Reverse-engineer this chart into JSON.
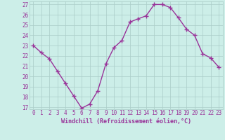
{
  "hours": [
    0,
    1,
    2,
    3,
    4,
    5,
    6,
    7,
    8,
    9,
    10,
    11,
    12,
    13,
    14,
    15,
    16,
    17,
    18,
    19,
    20,
    21,
    22,
    23
  ],
  "values": [
    23.0,
    22.3,
    21.7,
    20.5,
    19.3,
    18.1,
    16.9,
    17.3,
    18.6,
    21.2,
    22.8,
    23.5,
    25.3,
    25.6,
    25.9,
    27.0,
    27.0,
    26.7,
    25.7,
    24.6,
    24.0,
    22.2,
    21.8,
    20.9
  ],
  "line_color": "#993399",
  "marker": "+",
  "marker_size": 4,
  "marker_linewidth": 1.0,
  "bg_color": "#cceee8",
  "grid_color": "#aaccc8",
  "xlabel": "Windchill (Refroidissement éolien,°C)",
  "ylim_min": 16.8,
  "ylim_max": 27.3,
  "xlim_min": -0.5,
  "xlim_max": 23.5,
  "yticks": [
    17,
    18,
    19,
    20,
    21,
    22,
    23,
    24,
    25,
    26,
    27
  ],
  "xticks": [
    0,
    1,
    2,
    3,
    4,
    5,
    6,
    7,
    8,
    9,
    10,
    11,
    12,
    13,
    14,
    15,
    16,
    17,
    18,
    19,
    20,
    21,
    22,
    23
  ],
  "axis_label_color": "#993399",
  "tick_label_color": "#993399",
  "grid_linewidth": 0.5,
  "line_width": 1.0,
  "tick_fontsize": 5.5,
  "xlabel_fontsize": 6.0
}
